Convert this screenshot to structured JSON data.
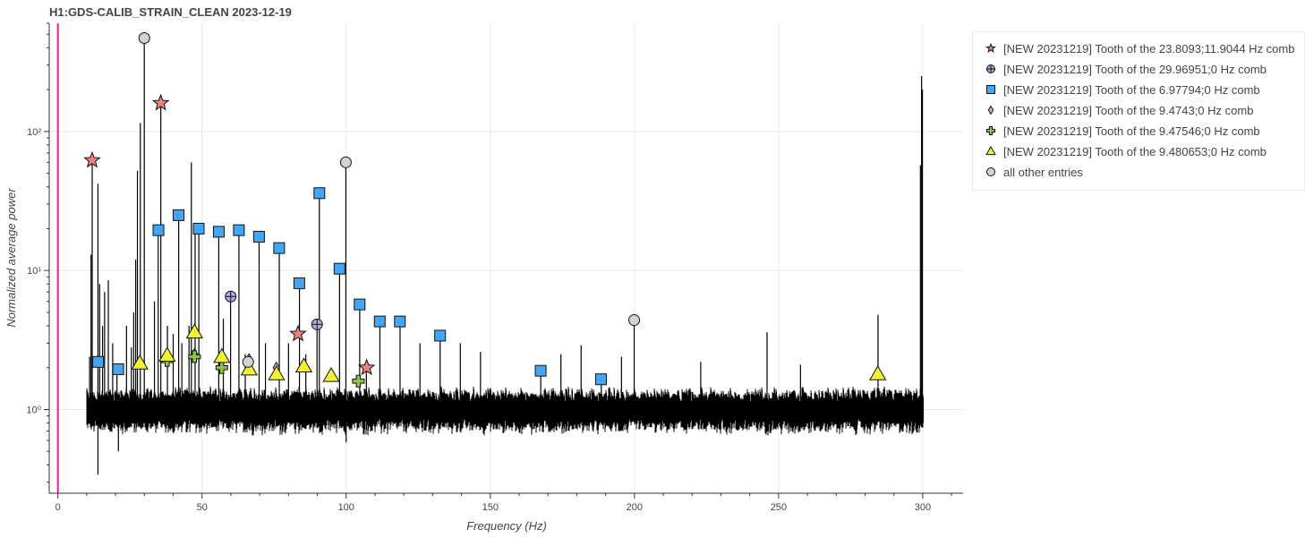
{
  "chart_data": {
    "type": "scatter",
    "title": "H1:GDS-CALIB_STRAIN_CLEAN 2023-12-19",
    "xlabel": "Frequency (Hz)",
    "ylabel": "Normalized average power",
    "xlim": [
      -3,
      314
    ],
    "ylim": [
      0.25,
      600
    ],
    "yscale": "log",
    "grid": true,
    "legend_position": "right",
    "x_ticks": [
      0,
      50,
      100,
      150,
      200,
      250,
      300
    ],
    "x_tick_labels": [
      "0",
      "50",
      "100",
      "150",
      "200",
      "250",
      "300"
    ],
    "y_ticks": [
      1,
      10,
      100
    ],
    "y_tick_labels": [
      "10⁰",
      "10¹",
      "10²"
    ],
    "vertical_marker": {
      "x": 0,
      "color": "#e91e8c"
    },
    "spectrum": {
      "range": [
        10,
        300
      ],
      "noise_band": [
        0.7,
        1.35
      ],
      "color": "#000000",
      "lines": [
        {
          "x": 11.0,
          "y": 2.4
        },
        {
          "x": 11.5,
          "y": 13
        },
        {
          "x": 11.9,
          "y": 62
        },
        {
          "x": 13.9,
          "y": 42
        },
        {
          "x": 14.5,
          "y": 8
        },
        {
          "x": 15.5,
          "y": 4
        },
        {
          "x": 16.2,
          "y": 7
        },
        {
          "x": 17.5,
          "y": 8.5
        },
        {
          "x": 19.0,
          "y": 3
        },
        {
          "x": 20.5,
          "y": 2.1
        },
        {
          "x": 23.8,
          "y": 4
        },
        {
          "x": 25.5,
          "y": 2.8
        },
        {
          "x": 26.3,
          "y": 5
        },
        {
          "x": 27.0,
          "y": 12
        },
        {
          "x": 27.6,
          "y": 52
        },
        {
          "x": 28.6,
          "y": 115
        },
        {
          "x": 29.97,
          "y": 470
        },
        {
          "x": 33.5,
          "y": 6
        },
        {
          "x": 34.8,
          "y": 20
        },
        {
          "x": 35.7,
          "y": 160
        },
        {
          "x": 38.0,
          "y": 4
        },
        {
          "x": 40.0,
          "y": 3.5
        },
        {
          "x": 41.9,
          "y": 25
        },
        {
          "x": 43.0,
          "y": 3
        },
        {
          "x": 45.5,
          "y": 4
        },
        {
          "x": 46.3,
          "y": 60
        },
        {
          "x": 47.6,
          "y": 21
        },
        {
          "x": 48.9,
          "y": 20
        },
        {
          "x": 55.8,
          "y": 19
        },
        {
          "x": 57.4,
          "y": 4.5
        },
        {
          "x": 59.9,
          "y": 6.5
        },
        {
          "x": 62.8,
          "y": 19.5
        },
        {
          "x": 65.0,
          "y": 2.5
        },
        {
          "x": 69.8,
          "y": 17
        },
        {
          "x": 72.0,
          "y": 3
        },
        {
          "x": 76.8,
          "y": 14.5
        },
        {
          "x": 80.0,
          "y": 3
        },
        {
          "x": 83.8,
          "y": 8
        },
        {
          "x": 86.0,
          "y": 2.5
        },
        {
          "x": 89.9,
          "y": 4.1
        },
        {
          "x": 90.7,
          "y": 36
        },
        {
          "x": 97.7,
          "y": 10.5
        },
        {
          "x": 99.9,
          "y": 60
        },
        {
          "x": 104.7,
          "y": 5.7
        },
        {
          "x": 107.0,
          "y": 2
        },
        {
          "x": 111.7,
          "y": 4.3
        },
        {
          "x": 118.7,
          "y": 4.3
        },
        {
          "x": 125.6,
          "y": 3
        },
        {
          "x": 132.6,
          "y": 3.4
        },
        {
          "x": 139.6,
          "y": 3
        },
        {
          "x": 146.6,
          "y": 2.6
        },
        {
          "x": 167.5,
          "y": 1.9
        },
        {
          "x": 174.5,
          "y": 2.5
        },
        {
          "x": 181.5,
          "y": 2.9
        },
        {
          "x": 188.5,
          "y": 1.6
        },
        {
          "x": 195.5,
          "y": 2.4
        },
        {
          "x": 199.9,
          "y": 4.4
        },
        {
          "x": 223.0,
          "y": 2.2
        },
        {
          "x": 246.0,
          "y": 3.6
        },
        {
          "x": 257.6,
          "y": 2.1
        },
        {
          "x": 284.5,
          "y": 4.8
        },
        {
          "x": 299.2,
          "y": 57
        },
        {
          "x": 299.6,
          "y": 250
        },
        {
          "x": 299.9,
          "y": 200
        }
      ],
      "dips": [
        {
          "x": 13.9,
          "y": 0.34
        },
        {
          "x": 21.0,
          "y": 0.5
        },
        {
          "x": 100.0,
          "y": 0.58
        }
      ]
    },
    "series": [
      {
        "name": "[NEW 20231219] Tooth of the 23.8093;11.9044 Hz comb",
        "marker": "star",
        "color": "#f08080",
        "points": [
          {
            "x": 11.9,
            "y": 62
          },
          {
            "x": 35.7,
            "y": 160
          },
          {
            "x": 83.3,
            "y": 3.5
          },
          {
            "x": 107.1,
            "y": 2.0
          }
        ]
      },
      {
        "name": "[NEW 20231219] Tooth of the 29.96951;0 Hz comb",
        "marker": "circle_cross",
        "color": "#b7a5e0",
        "points": [
          {
            "x": 59.94,
            "y": 6.5
          },
          {
            "x": 89.91,
            "y": 4.1
          }
        ]
      },
      {
        "name": "[NEW 20231219] Tooth of the 6.97794;0 Hz comb",
        "marker": "square",
        "color": "#42a5f5",
        "points": [
          {
            "x": 13.96,
            "y": 2.2
          },
          {
            "x": 20.93,
            "y": 1.95
          },
          {
            "x": 34.89,
            "y": 19.5
          },
          {
            "x": 41.87,
            "y": 25
          },
          {
            "x": 48.85,
            "y": 20
          },
          {
            "x": 55.82,
            "y": 19
          },
          {
            "x": 62.8,
            "y": 19.5
          },
          {
            "x": 69.78,
            "y": 17.5
          },
          {
            "x": 76.76,
            "y": 14.5
          },
          {
            "x": 83.74,
            "y": 8.1
          },
          {
            "x": 90.71,
            "y": 36
          },
          {
            "x": 97.69,
            "y": 10.3
          },
          {
            "x": 104.67,
            "y": 5.7
          },
          {
            "x": 111.65,
            "y": 4.3
          },
          {
            "x": 118.63,
            "y": 4.3
          },
          {
            "x": 132.58,
            "y": 3.4
          },
          {
            "x": 167.47,
            "y": 1.9
          },
          {
            "x": 188.4,
            "y": 1.65
          }
        ]
      },
      {
        "name": "[NEW 20231219] Tooth of the 9.4743;0 Hz comb",
        "marker": "diamond",
        "color": "#e9a0e0",
        "points": [
          {
            "x": 47.37,
            "y": 2.5
          },
          {
            "x": 66.32,
            "y": 2.3
          },
          {
            "x": 75.79,
            "y": 2.0
          }
        ]
      },
      {
        "name": "[NEW 20231219] Tooth of the 9.47546;0 Hz comb",
        "marker": "plus",
        "color": "#8bc34a",
        "points": [
          {
            "x": 37.9,
            "y": 2.25
          },
          {
            "x": 47.38,
            "y": 2.4
          },
          {
            "x": 56.85,
            "y": 2.0
          },
          {
            "x": 104.23,
            "y": 1.6
          }
        ]
      },
      {
        "name": "[NEW 20231219] Tooth of the 9.480653;0 Hz comb",
        "marker": "triangle",
        "color": "#f2f230",
        "points": [
          {
            "x": 28.44,
            "y": 2.15
          },
          {
            "x": 37.92,
            "y": 2.45
          },
          {
            "x": 47.4,
            "y": 3.6
          },
          {
            "x": 56.88,
            "y": 2.4
          },
          {
            "x": 66.36,
            "y": 1.95
          },
          {
            "x": 75.85,
            "y": 1.8
          },
          {
            "x": 85.33,
            "y": 2.05
          },
          {
            "x": 94.81,
            "y": 1.75
          },
          {
            "x": 284.42,
            "y": 1.8
          }
        ]
      },
      {
        "name": "all other entries",
        "marker": "circle",
        "color": "#d3d3d3",
        "points": [
          {
            "x": 29.97,
            "y": 470
          },
          {
            "x": 99.9,
            "y": 60
          },
          {
            "x": 199.9,
            "y": 4.4
          },
          {
            "x": 66.0,
            "y": 2.2
          }
        ]
      }
    ]
  }
}
